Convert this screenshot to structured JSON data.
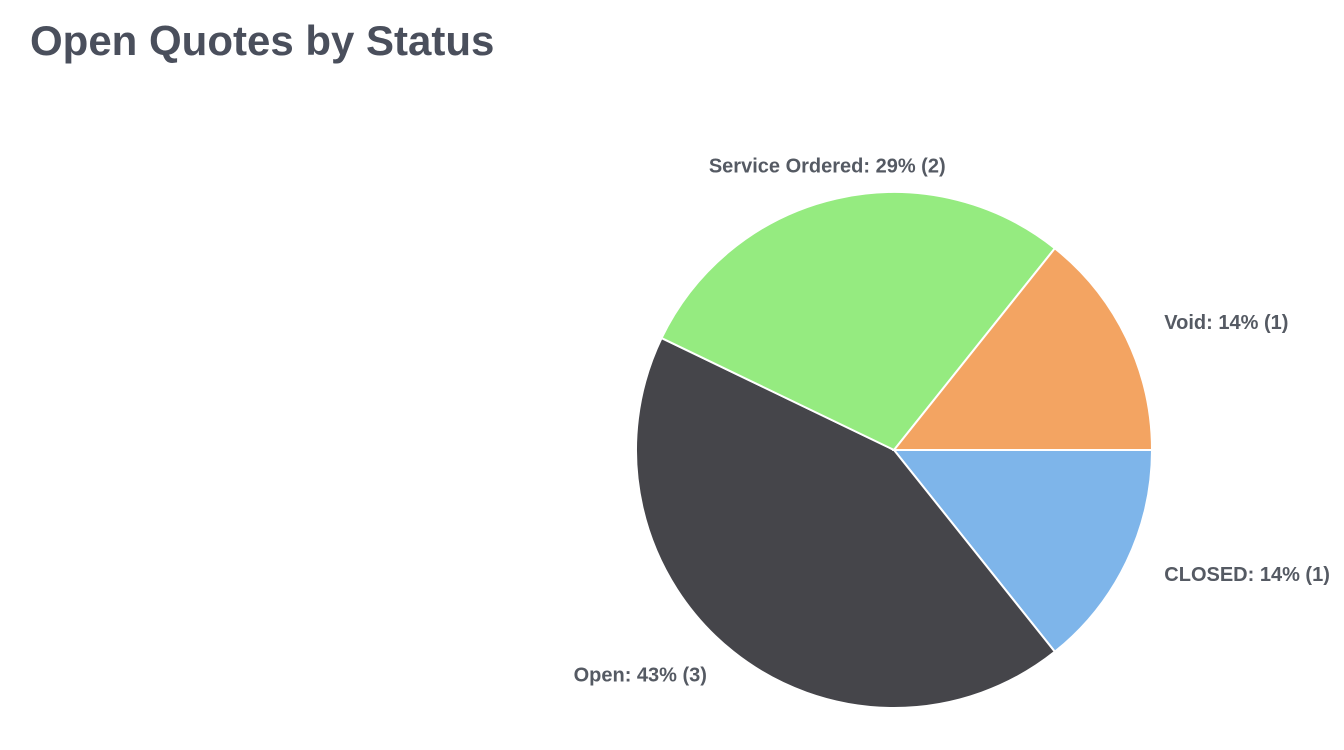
{
  "chart_data": {
    "type": "pie",
    "title": "Open Quotes by Status",
    "categories": [
      "CLOSED",
      "Open",
      "Service Ordered",
      "Void"
    ],
    "values": [
      1,
      3,
      2,
      1
    ],
    "value_labels": [
      "14% (1)",
      "43% (3)",
      "29% (2)",
      "14% (1)"
    ],
    "label_separator": ": ",
    "colors": [
      "#7eb5ea",
      "#45454a",
      "#95eb80",
      "#f3a462"
    ]
  }
}
